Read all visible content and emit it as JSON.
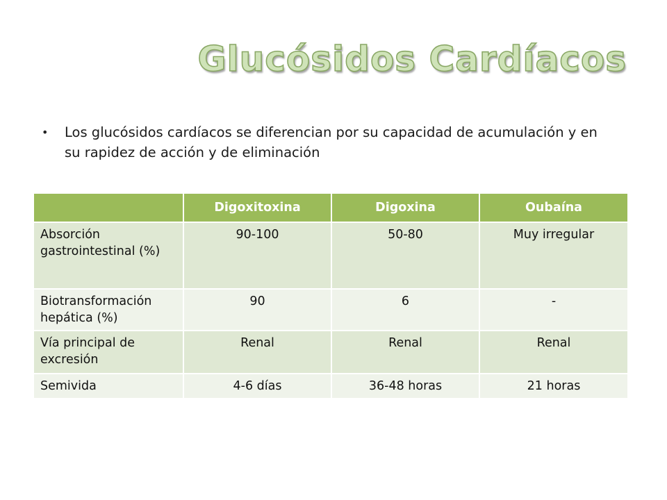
{
  "slide": {
    "title": "Glucósidos Cardíacos",
    "bullet": "Los glucósidos cardíacos se diferencian por su capacidad de acumulación y en su rapidez de acción y de eliminación",
    "bullet_marker": "•"
  },
  "table": {
    "headers": [
      "",
      "Digoxitoxina",
      "Digoxina",
      "Oubaína"
    ],
    "rows": [
      {
        "label": "Absorción gastrointestinal (%)",
        "values": [
          "90-100",
          "50-80",
          "Muy irregular"
        ]
      },
      {
        "label": "Biotransformación hepática (%)",
        "values": [
          "90",
          "6",
          "-"
        ]
      },
      {
        "label": "Vía principal de excresión",
        "values": [
          "Renal",
          "Renal",
          "Renal"
        ]
      },
      {
        "label": "Semivida",
        "values": [
          "4-6 días",
          "36-48 horas",
          "21 horas"
        ]
      }
    ]
  },
  "colors": {
    "header_fill": "#9bbb59",
    "row_odd_fill": "#dfe8d3",
    "row_even_fill": "#eff3ea",
    "title_fill": "#cfe3b8",
    "title_outline": "#8aa866"
  }
}
